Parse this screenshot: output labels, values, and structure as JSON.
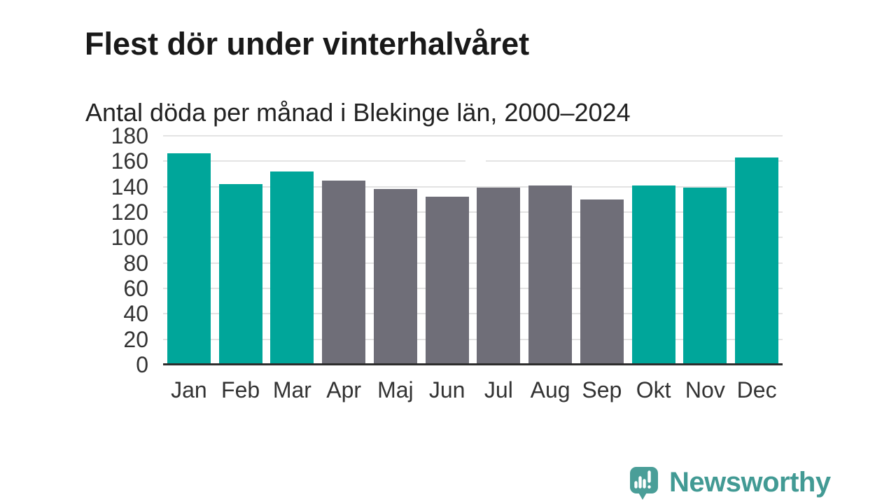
{
  "page": {
    "background": "#ffffff"
  },
  "header": {
    "title": "Flest dör under vinterhalvåret",
    "subtitle": "Antal döda per månad i Blekinge län, 2000–2024"
  },
  "chart_data": {
    "type": "bar",
    "title": "Flest dör under vinterhalvåret",
    "subtitle": "Antal döda per månad i Blekinge län, 2000–2024",
    "categories": [
      "Jan",
      "Feb",
      "Mar",
      "Apr",
      "Maj",
      "Jun",
      "Jul",
      "Aug",
      "Sep",
      "Okt",
      "Nov",
      "Dec"
    ],
    "values": [
      166,
      142,
      152,
      145,
      138,
      132,
      139,
      141,
      130,
      141,
      139,
      163
    ],
    "bar_groups": [
      "winter",
      "winter",
      "winter",
      "summer",
      "summer",
      "summer",
      "summer",
      "summer",
      "summer",
      "winter",
      "winter",
      "winter"
    ],
    "colors": {
      "winter": "#00a69a",
      "summer": "#6f6e78"
    },
    "xlabel": "",
    "ylabel": "",
    "ylim": [
      0,
      180
    ],
    "yticks": [
      0,
      20,
      40,
      60,
      80,
      100,
      120,
      140,
      160,
      180
    ],
    "grid": true,
    "gridline_color": "#e3e3e3",
    "axis_color": "#2d2d2d",
    "label_color": "#333333",
    "legend": "none"
  },
  "footer": {
    "brand": "Newsworthy",
    "brand_color": "#429a94",
    "logo_color": "#4a9e98",
    "logo_icon": "speech-bubble-bar-chart-exclamation-icon"
  }
}
